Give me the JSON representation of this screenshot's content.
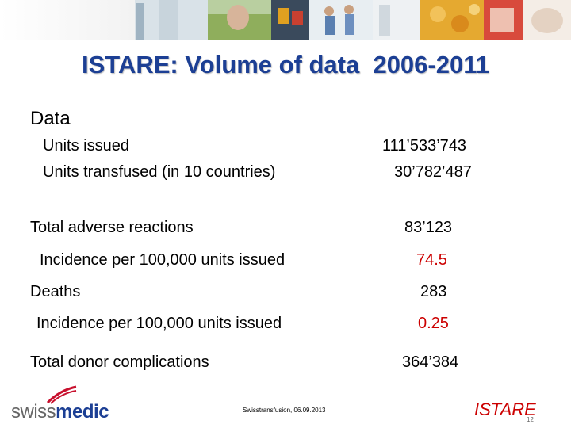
{
  "title": "ISTARE: Volume of data  2006-2011",
  "section_heading": "Data",
  "rows": [
    {
      "label": "Units issued",
      "value": "111’533’743"
    },
    {
      "label": "Units transfused (in 10 countries)",
      "value": "30’782’487"
    },
    {
      "label": "Total adverse reactions",
      "value": "83’123"
    },
    {
      "label": "Incidence per 100,000 units issued",
      "value": "74.5"
    },
    {
      "label": "Deaths",
      "value": "283"
    },
    {
      "label": "Incidence per 100,000 units issued",
      "value": "0.25"
    },
    {
      "label": "Total donor complications",
      "value": "364’384"
    }
  ],
  "footer": {
    "logo_prefix": "swiss",
    "logo_suffix": "medic",
    "note": "Swisstransfusion, 06.09.2013",
    "brand": "ISTARE",
    "page": "12"
  },
  "colors": {
    "title": "#1c3f94",
    "highlight": "#cc0000"
  }
}
